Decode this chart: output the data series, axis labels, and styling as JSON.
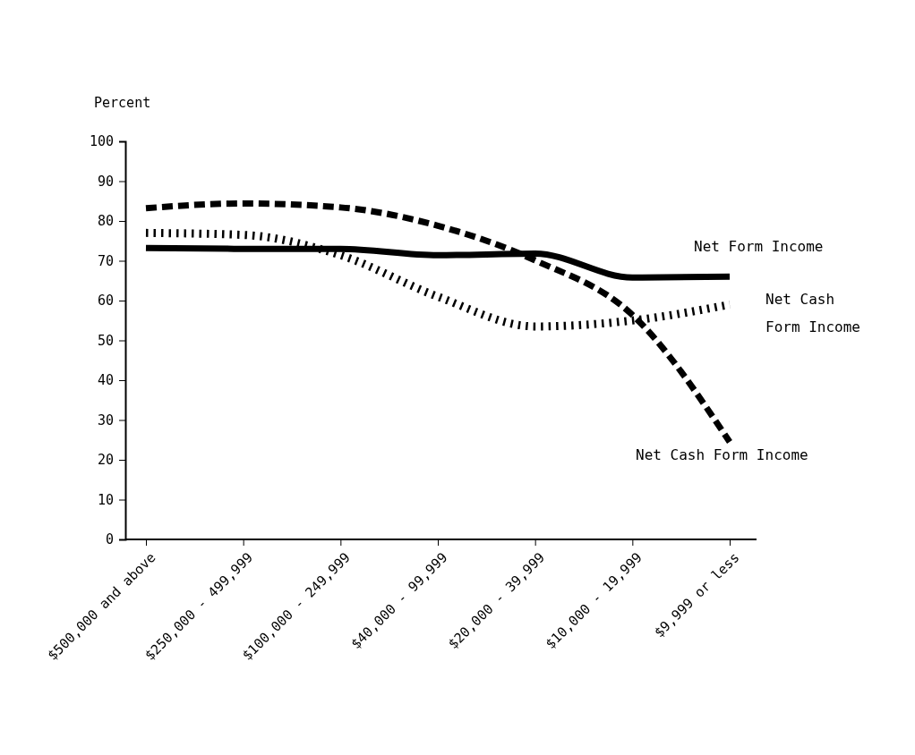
{
  "chart_data": {
    "type": "line",
    "ylabel": "Percent",
    "categories": [
      "$500,000 and above",
      "$250,000 - 499,999",
      "$100,000 - 249,999",
      "$40,000 - 99,999",
      "$20,000 - 39,999",
      "$10,000 - 19,999",
      "$9,999 or less"
    ],
    "series": [
      {
        "name": "Net Form Income",
        "color": "#000000",
        "line_style": "solid",
        "values": [
          73.2,
          73,
          73,
          71.4,
          71.8,
          65.8,
          66
        ]
      },
      {
        "name": "Net Cash\nForm Income",
        "color": "#000000",
        "line_style": "dotted",
        "values": [
          77,
          76.5,
          71.4,
          61,
          53.5,
          55,
          59
        ]
      },
      {
        "name": "Net Cash Form Income",
        "color": "#000000",
        "line_style": "dashed",
        "values": [
          83.2,
          84.4,
          83.4,
          78.8,
          70.1,
          56.4,
          24.5
        ]
      }
    ],
    "ylim": [
      0,
      100
    ],
    "yticks": [
      0,
      10,
      20,
      30,
      40,
      50,
      60,
      70,
      80,
      90,
      100
    ],
    "grid": false,
    "legend": false,
    "marker": "none"
  }
}
